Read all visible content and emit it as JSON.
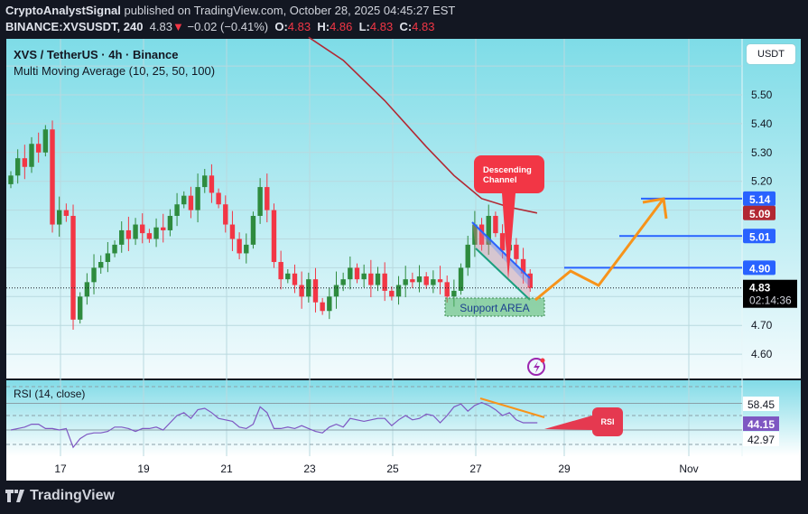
{
  "header": {
    "author": "CryptoAnalystSignal",
    "published": "published on TradingView.com, October 28, 2025 04:45:27 EST",
    "symbol": "BINANCE:XVSUSDT, 240",
    "last": "4.83",
    "change": "−0.02 (−0.41%)",
    "o_label": "O:",
    "o": "4.83",
    "h_label": "H:",
    "h": "4.86",
    "l_label": "L:",
    "l": "4.83",
    "c_label": "C:",
    "c": "4.83"
  },
  "legend": {
    "title": "XVS / TetherUS · 4h · Binance",
    "indicator": "Multi Moving Average (10, 25, 50, 100)"
  },
  "currency_button": "USDT",
  "branding": "TradingView",
  "colors": {
    "up": "#2e8b3e",
    "down": "#f23645",
    "ma": "#b22833",
    "level": "#2962ff",
    "projection": "#f7931a",
    "rsi": "#7e57c2"
  },
  "chart_data": {
    "type": "candlestick",
    "timeframe": "4h",
    "first_candle": "Oct 15 20:00",
    "closes": [
      5.22,
      5.28,
      5.25,
      5.33,
      5.3,
      5.38,
      5.05,
      5.1,
      5.08,
      4.72,
      4.8,
      4.85,
      4.9,
      4.92,
      4.95,
      4.98,
      5.03,
      5.0,
      5.05,
      5.02,
      5.0,
      5.04,
      5.03,
      5.08,
      5.12,
      5.15,
      5.1,
      5.18,
      5.22,
      5.16,
      5.12,
      5.05,
      5.0,
      4.95,
      4.98,
      5.08,
      5.18,
      5.1,
      4.92,
      4.86,
      4.88,
      4.84,
      4.8,
      4.86,
      4.78,
      4.75,
      4.8,
      4.84,
      4.86,
      4.9,
      4.86,
      4.88,
      4.84,
      4.88,
      4.82,
      4.8,
      4.84,
      4.86,
      4.85,
      4.87,
      4.84,
      4.86,
      4.85,
      4.8,
      4.82,
      4.9,
      4.98,
      5.05,
      4.98,
      5.08,
      5.02,
      4.96,
      4.98,
      4.93,
      4.88,
      4.83
    ],
    "ma_line": [
      [
        43,
        5.7
      ],
      [
        48,
        5.62
      ],
      [
        54,
        5.48
      ],
      [
        60,
        5.32
      ],
      [
        64,
        5.22
      ],
      [
        68,
        5.14
      ],
      [
        72,
        5.11
      ],
      [
        76,
        5.09
      ]
    ],
    "price_axis": {
      "ticks": [
        "5.50",
        "5.40",
        "5.30",
        "5.20",
        "4.70",
        "4.60"
      ],
      "range": [
        4.55,
        5.7
      ]
    },
    "time_axis": {
      "ticks": [
        "17",
        "19",
        "21",
        "23",
        "25",
        "27",
        "29",
        "Nov"
      ]
    },
    "price_labels": [
      {
        "value": "5.14",
        "color": "#2962ff"
      },
      {
        "value": "5.09",
        "color": "#b22833"
      },
      {
        "value": "5.01",
        "color": "#2962ff"
      },
      {
        "value": "4.90",
        "color": "#2962ff"
      }
    ],
    "current_price": "4.83",
    "countdown": "02:14:36",
    "levels": [
      5.14,
      5.01,
      4.9
    ],
    "annotations": {
      "callout": "Descending Channel",
      "support": "Support AREA",
      "rsi_callout": "RSI"
    },
    "rsi": {
      "label": "RSI (14, close)",
      "values": [
        40,
        41,
        42,
        44,
        44,
        41,
        41,
        40,
        41,
        28,
        34,
        37,
        38,
        38,
        39,
        42,
        42,
        41,
        39,
        41,
        41,
        42,
        40,
        45,
        50,
        52,
        48,
        54,
        55,
        52,
        48,
        47,
        46,
        42,
        41,
        44,
        56,
        52,
        41,
        41,
        42,
        41,
        43,
        41,
        39,
        38,
        42,
        44,
        42,
        48,
        47,
        46,
        47,
        48,
        48,
        43,
        47,
        50,
        47,
        48,
        51,
        50,
        45,
        50,
        56,
        58,
        53,
        57,
        59,
        57,
        54,
        50,
        52,
        47,
        45,
        45
      ],
      "axis_labels": [
        "58.45",
        "44.15",
        "42.97"
      ],
      "range": [
        30,
        70
      ]
    }
  }
}
